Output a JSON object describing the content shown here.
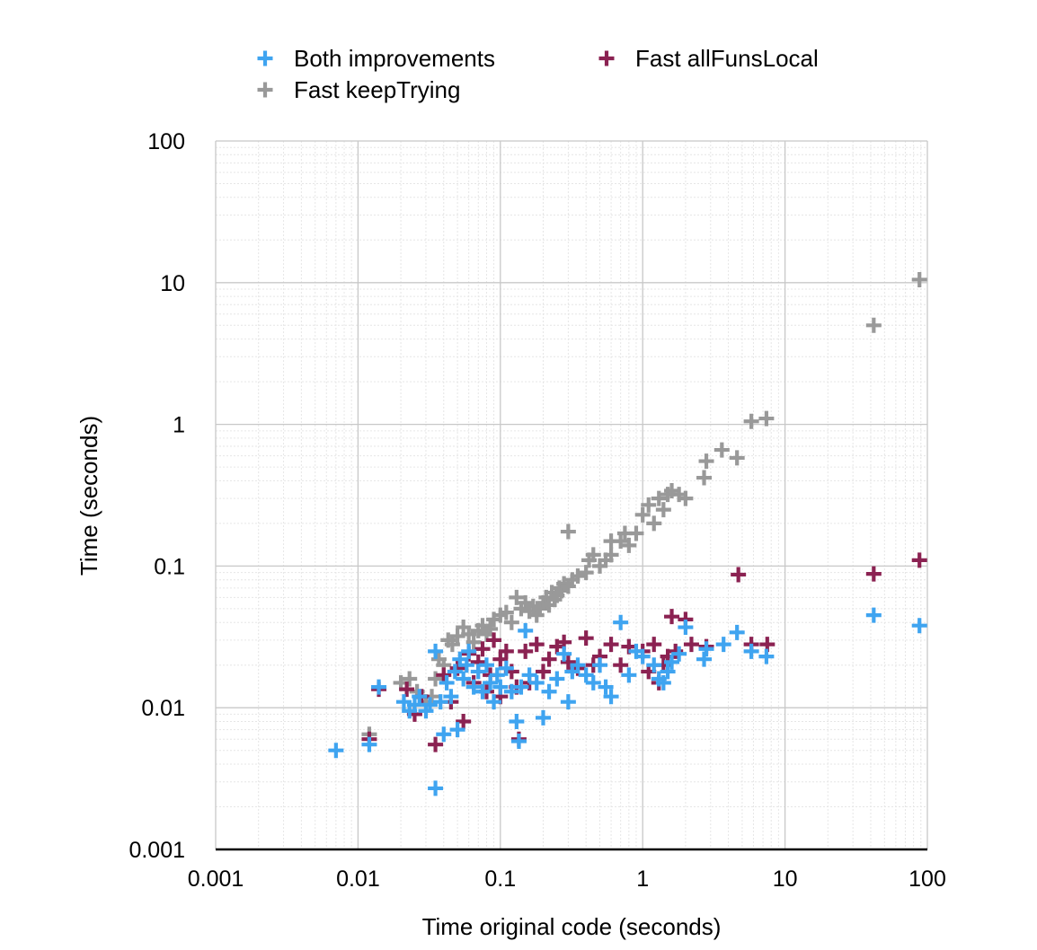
{
  "chart_data": {
    "type": "scatter",
    "xlabel": "Time original code (seconds)",
    "ylabel": "Time (seconds)",
    "x_scale": "log",
    "y_scale": "log",
    "xlim": [
      0.001,
      100
    ],
    "ylim": [
      0.001,
      100
    ],
    "x_ticks": [
      "0.001",
      "0.01",
      "0.1",
      "1",
      "10",
      "100"
    ],
    "y_ticks": [
      "0.001",
      "0.01",
      "0.1",
      "1",
      "10",
      "100"
    ],
    "grid": true,
    "legend_position": "top",
    "series": [
      {
        "name": "Fast keepTrying",
        "color": "#999999",
        "marker": "plus",
        "points": [
          [
            0.012,
            0.0065
          ],
          [
            0.02,
            0.015
          ],
          [
            0.023,
            0.016
          ],
          [
            0.026,
            0.013
          ],
          [
            0.03,
            0.011
          ],
          [
            0.033,
            0.012
          ],
          [
            0.035,
            0.016
          ],
          [
            0.037,
            0.022
          ],
          [
            0.04,
            0.02
          ],
          [
            0.043,
            0.03
          ],
          [
            0.046,
            0.028
          ],
          [
            0.05,
            0.032
          ],
          [
            0.055,
            0.037
          ],
          [
            0.06,
            0.033
          ],
          [
            0.065,
            0.029
          ],
          [
            0.07,
            0.035
          ],
          [
            0.075,
            0.038
          ],
          [
            0.08,
            0.033
          ],
          [
            0.085,
            0.036
          ],
          [
            0.09,
            0.042
          ],
          [
            0.1,
            0.045
          ],
          [
            0.11,
            0.047
          ],
          [
            0.12,
            0.04
          ],
          [
            0.13,
            0.06
          ],
          [
            0.14,
            0.05
          ],
          [
            0.15,
            0.055
          ],
          [
            0.16,
            0.048
          ],
          [
            0.17,
            0.052
          ],
          [
            0.18,
            0.045
          ],
          [
            0.19,
            0.05
          ],
          [
            0.2,
            0.055
          ],
          [
            0.21,
            0.06
          ],
          [
            0.22,
            0.053
          ],
          [
            0.23,
            0.065
          ],
          [
            0.24,
            0.058
          ],
          [
            0.25,
            0.062
          ],
          [
            0.26,
            0.07
          ],
          [
            0.27,
            0.067
          ],
          [
            0.28,
            0.075
          ],
          [
            0.3,
            0.072
          ],
          [
            0.3,
            0.175
          ],
          [
            0.32,
            0.08
          ],
          [
            0.35,
            0.085
          ],
          [
            0.4,
            0.09
          ],
          [
            0.42,
            0.11
          ],
          [
            0.45,
            0.12
          ],
          [
            0.5,
            0.1
          ],
          [
            0.55,
            0.11
          ],
          [
            0.6,
            0.12
          ],
          [
            0.6,
            0.15
          ],
          [
            0.7,
            0.15
          ],
          [
            0.75,
            0.17
          ],
          [
            0.8,
            0.14
          ],
          [
            0.9,
            0.17
          ],
          [
            1.0,
            0.23
          ],
          [
            1.1,
            0.27
          ],
          [
            1.2,
            0.2
          ],
          [
            1.3,
            0.3
          ],
          [
            1.4,
            0.25
          ],
          [
            1.5,
            0.32
          ],
          [
            1.6,
            0.34
          ],
          [
            1.8,
            0.32
          ],
          [
            2.0,
            0.3
          ],
          [
            2.7,
            0.42
          ],
          [
            2.8,
            0.55
          ],
          [
            3.6,
            0.66
          ],
          [
            4.6,
            0.58
          ],
          [
            5.8,
            1.05
          ],
          [
            7.4,
            1.1
          ],
          [
            42,
            5.0
          ],
          [
            88,
            10.5
          ]
        ]
      },
      {
        "name": "Fast allFunsLocal",
        "color": "#8b2252",
        "marker": "plus",
        "points": [
          [
            0.012,
            0.006
          ],
          [
            0.014,
            0.0135
          ],
          [
            0.022,
            0.0135
          ],
          [
            0.025,
            0.009
          ],
          [
            0.028,
            0.012
          ],
          [
            0.035,
            0.0055
          ],
          [
            0.04,
            0.017
          ],
          [
            0.045,
            0.011
          ],
          [
            0.05,
            0.019
          ],
          [
            0.055,
            0.008
          ],
          [
            0.06,
            0.024
          ],
          [
            0.065,
            0.015
          ],
          [
            0.07,
            0.021
          ],
          [
            0.075,
            0.026
          ],
          [
            0.08,
            0.013
          ],
          [
            0.085,
            0.017
          ],
          [
            0.09,
            0.03
          ],
          [
            0.1,
            0.012
          ],
          [
            0.1,
            0.022
          ],
          [
            0.11,
            0.025
          ],
          [
            0.12,
            0.018
          ],
          [
            0.13,
            0.014
          ],
          [
            0.135,
            0.006
          ],
          [
            0.15,
            0.025
          ],
          [
            0.16,
            0.015
          ],
          [
            0.18,
            0.028
          ],
          [
            0.2,
            0.018
          ],
          [
            0.22,
            0.022
          ],
          [
            0.25,
            0.027
          ],
          [
            0.28,
            0.029
          ],
          [
            0.3,
            0.021
          ],
          [
            0.35,
            0.019
          ],
          [
            0.4,
            0.031
          ],
          [
            0.45,
            0.02
          ],
          [
            0.5,
            0.023
          ],
          [
            0.6,
            0.028
          ],
          [
            0.7,
            0.02
          ],
          [
            0.8,
            0.027
          ],
          [
            1.0,
            0.025
          ],
          [
            1.1,
            0.018
          ],
          [
            1.2,
            0.028
          ],
          [
            1.3,
            0.015
          ],
          [
            1.4,
            0.02
          ],
          [
            1.5,
            0.023
          ],
          [
            1.6,
            0.044
          ],
          [
            1.7,
            0.025
          ],
          [
            2.0,
            0.042
          ],
          [
            2.2,
            0.028
          ],
          [
            2.8,
            0.027
          ],
          [
            4.7,
            0.087
          ],
          [
            5.8,
            0.028
          ],
          [
            7.5,
            0.028
          ],
          [
            42,
            0.088
          ],
          [
            88,
            0.11
          ]
        ]
      },
      {
        "name": "Both improvements",
        "color": "#3fa4f0",
        "marker": "plus",
        "points": [
          [
            0.007,
            0.005
          ],
          [
            0.012,
            0.0055
          ],
          [
            0.014,
            0.014
          ],
          [
            0.021,
            0.011
          ],
          [
            0.023,
            0.0095
          ],
          [
            0.025,
            0.0105
          ],
          [
            0.027,
            0.012
          ],
          [
            0.03,
            0.0095
          ],
          [
            0.032,
            0.0105
          ],
          [
            0.035,
            0.0027
          ],
          [
            0.035,
            0.025
          ],
          [
            0.038,
            0.011
          ],
          [
            0.04,
            0.0065
          ],
          [
            0.042,
            0.015
          ],
          [
            0.045,
            0.012
          ],
          [
            0.048,
            0.018
          ],
          [
            0.05,
            0.007
          ],
          [
            0.052,
            0.022
          ],
          [
            0.055,
            0.016
          ],
          [
            0.058,
            0.02
          ],
          [
            0.06,
            0.025
          ],
          [
            0.065,
            0.014
          ],
          [
            0.07,
            0.018
          ],
          [
            0.075,
            0.013
          ],
          [
            0.08,
            0.02
          ],
          [
            0.085,
            0.015
          ],
          [
            0.09,
            0.011
          ],
          [
            0.095,
            0.017
          ],
          [
            0.1,
            0.014
          ],
          [
            0.11,
            0.019
          ],
          [
            0.12,
            0.013
          ],
          [
            0.13,
            0.008
          ],
          [
            0.135,
            0.0058
          ],
          [
            0.14,
            0.014
          ],
          [
            0.15,
            0.035
          ],
          [
            0.16,
            0.017
          ],
          [
            0.18,
            0.015
          ],
          [
            0.2,
            0.0085
          ],
          [
            0.22,
            0.013
          ],
          [
            0.25,
            0.016
          ],
          [
            0.28,
            0.024
          ],
          [
            0.3,
            0.011
          ],
          [
            0.32,
            0.018
          ],
          [
            0.35,
            0.02
          ],
          [
            0.4,
            0.017
          ],
          [
            0.45,
            0.015
          ],
          [
            0.5,
            0.02
          ],
          [
            0.55,
            0.014
          ],
          [
            0.6,
            0.012
          ],
          [
            0.7,
            0.04
          ],
          [
            0.8,
            0.017
          ],
          [
            0.9,
            0.025
          ],
          [
            1.0,
            0.023
          ],
          [
            1.2,
            0.02
          ],
          [
            1.3,
            0.016
          ],
          [
            1.4,
            0.015
          ],
          [
            1.5,
            0.018
          ],
          [
            1.6,
            0.021
          ],
          [
            1.8,
            0.024
          ],
          [
            2.0,
            0.037
          ],
          [
            2.7,
            0.022
          ],
          [
            2.8,
            0.026
          ],
          [
            3.7,
            0.028
          ],
          [
            4.6,
            0.034
          ],
          [
            5.8,
            0.025
          ],
          [
            7.4,
            0.023
          ],
          [
            42,
            0.045
          ],
          [
            88,
            0.038
          ]
        ]
      }
    ]
  }
}
